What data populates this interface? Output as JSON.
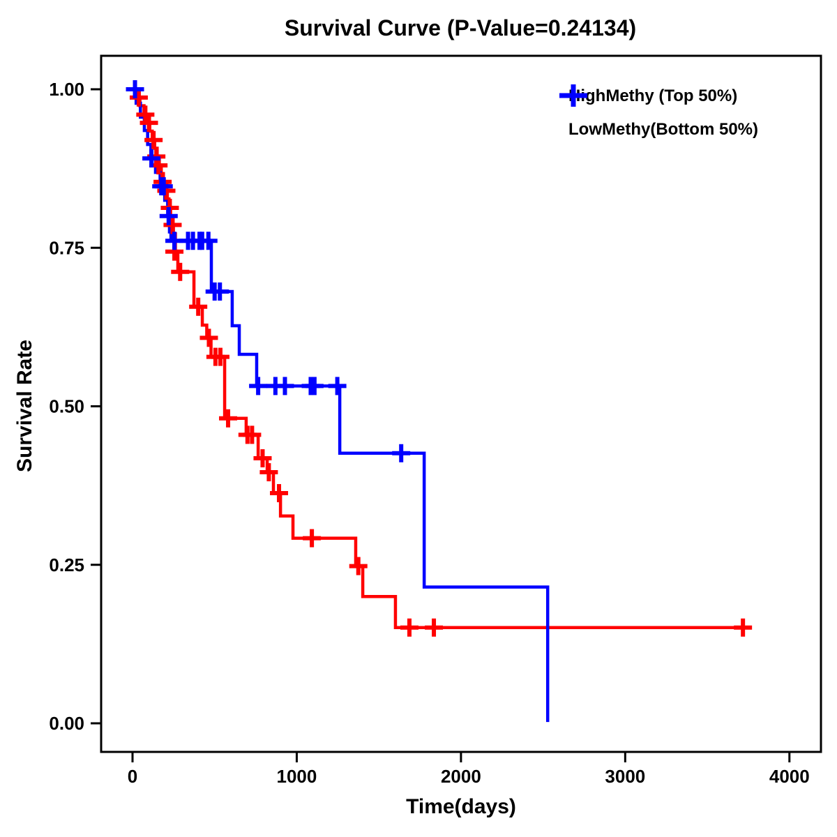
{
  "page": {
    "background": "#ffffff"
  },
  "chart_data": {
    "type": "line",
    "subtype": "kaplan-meier-step-survival",
    "title": "Survival Curve (P-Value=0.24134)",
    "p_value_shown_in_title": "0.24134",
    "xlabel": "Time(days)",
    "ylabel": "Survival Rate",
    "xlim": [
      -190,
      4190
    ],
    "ylim": [
      -0.045,
      1.053
    ],
    "x_ticks": [
      0,
      1000,
      2000,
      3000,
      4000
    ],
    "x_tick_labels": [
      "0",
      "1000",
      "2000",
      "3000",
      "4000"
    ],
    "y_ticks": [
      0,
      0.25,
      0.5,
      0.75,
      1
    ],
    "y_tick_labels": [
      "0.00",
      "0.25",
      "0.50",
      "0.75",
      "1.00"
    ],
    "grid": false,
    "legend_position": "top-right-inside",
    "frame_color": "#000000",
    "series": [
      {
        "name": "HighMethy (Top 50%)",
        "color": "#FF0000",
        "steps": [
          [
            0,
            1.0
          ],
          [
            20,
            0.987
          ],
          [
            45,
            0.974
          ],
          [
            70,
            0.96
          ],
          [
            90,
            0.947
          ],
          [
            105,
            0.934
          ],
          [
            120,
            0.92
          ],
          [
            135,
            0.907
          ],
          [
            150,
            0.894
          ],
          [
            163,
            0.88
          ],
          [
            175,
            0.867
          ],
          [
            188,
            0.854
          ],
          [
            200,
            0.84
          ],
          [
            212,
            0.827
          ],
          [
            222,
            0.813
          ],
          [
            232,
            0.8
          ],
          [
            241,
            0.786
          ],
          [
            249,
            0.772
          ],
          [
            261,
            0.744
          ],
          [
            276,
            0.712
          ],
          [
            374,
            0.657
          ],
          [
            425,
            0.628
          ],
          [
            452,
            0.608
          ],
          [
            478,
            0.578
          ],
          [
            561,
            0.481
          ],
          [
            692,
            0.455
          ],
          [
            765,
            0.418
          ],
          [
            820,
            0.396
          ],
          [
            858,
            0.363
          ],
          [
            901,
            0.327
          ],
          [
            977,
            0.292
          ],
          [
            1359,
            0.248
          ],
          [
            1402,
            0.2
          ],
          [
            1601,
            0.151
          ],
          [
            3717,
            0.151
          ]
        ],
        "censors": [
          [
            38,
            0.987
          ],
          [
            78,
            0.96
          ],
          [
            100,
            0.947
          ],
          [
            128,
            0.92
          ],
          [
            145,
            0.894
          ],
          [
            158,
            0.88
          ],
          [
            183,
            0.854
          ],
          [
            206,
            0.84
          ],
          [
            227,
            0.813
          ],
          [
            244,
            0.786
          ],
          [
            255,
            0.744
          ],
          [
            290,
            0.712
          ],
          [
            400,
            0.657
          ],
          [
            465,
            0.608
          ],
          [
            505,
            0.578
          ],
          [
            535,
            0.578
          ],
          [
            582,
            0.481
          ],
          [
            700,
            0.455
          ],
          [
            728,
            0.455
          ],
          [
            792,
            0.418
          ],
          [
            830,
            0.396
          ],
          [
            892,
            0.363
          ],
          [
            1092,
            0.292
          ],
          [
            1375,
            0.248
          ],
          [
            1686,
            0.151
          ],
          [
            1835,
            0.151
          ],
          [
            3717,
            0.151
          ]
        ]
      },
      {
        "name": "LowMethy(Bottom 50%)",
        "color": "#0000FF",
        "steps": [
          [
            0,
            1.0
          ],
          [
            22,
            0.978
          ],
          [
            48,
            0.956
          ],
          [
            72,
            0.935
          ],
          [
            92,
            0.913
          ],
          [
            112,
            0.891
          ],
          [
            140,
            0.869
          ],
          [
            168,
            0.847
          ],
          [
            196,
            0.825
          ],
          [
            214,
            0.8
          ],
          [
            225,
            0.775
          ],
          [
            234,
            0.761
          ],
          [
            480,
            0.681
          ],
          [
            607,
            0.627
          ],
          [
            650,
            0.582
          ],
          [
            756,
            0.532
          ],
          [
            1262,
            0.426
          ],
          [
            1776,
            0.215
          ],
          [
            2528,
            0.002
          ]
        ],
        "censors": [
          [
            15,
            1.0
          ],
          [
            115,
            0.891
          ],
          [
            175,
            0.847
          ],
          [
            190,
            0.847
          ],
          [
            220,
            0.8
          ],
          [
            255,
            0.761
          ],
          [
            338,
            0.761
          ],
          [
            368,
            0.761
          ],
          [
            408,
            0.761
          ],
          [
            424,
            0.761
          ],
          [
            462,
            0.761
          ],
          [
            500,
            0.681
          ],
          [
            532,
            0.681
          ],
          [
            765,
            0.532
          ],
          [
            870,
            0.532
          ],
          [
            928,
            0.532
          ],
          [
            1085,
            0.532
          ],
          [
            1108,
            0.532
          ],
          [
            1247,
            0.532
          ],
          [
            1636,
            0.426
          ]
        ]
      }
    ]
  }
}
